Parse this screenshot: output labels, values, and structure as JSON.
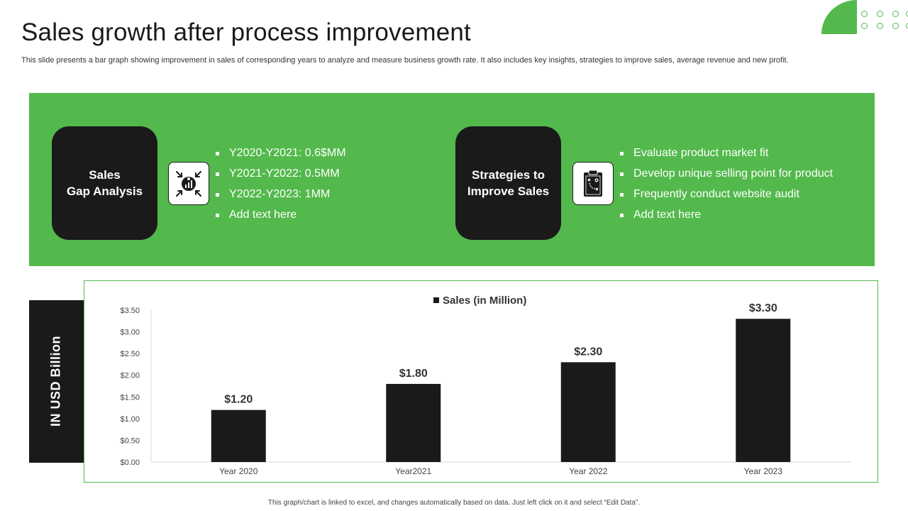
{
  "header": {
    "title": "Sales growth after process improvement",
    "subtitle": "This slide presents a bar graph showing improvement in sales of corresponding years to analyze and measure  business growth rate. It also includes key insights, strategies to improve sales, average revenue and new profit."
  },
  "colors": {
    "accent": "#53b94c",
    "dark": "#1a1a1a",
    "white": "#ffffff"
  },
  "sections": [
    {
      "heading_line1": "Sales",
      "heading_line2": "Gap Analysis",
      "icon": "target-money-icon",
      "bullets": [
        "Y2020-Y2021:  0.6$MM",
        "Y2021-Y2022:  0.5MM",
        "Y2022-Y2023:  1MM",
        "Add text here"
      ]
    },
    {
      "heading_line1": "Strategies to",
      "heading_line2": "Improve Sales",
      "icon": "clipboard-strategy-icon",
      "bullets": [
        "Evaluate product market fit",
        "Develop unique selling point for product",
        "Frequently  conduct website audit",
        "Add text here"
      ]
    }
  ],
  "y_band_label": "IN USD Billion",
  "chart_data": {
    "type": "bar",
    "title": "",
    "legend": "Sales (in Million)",
    "legend_position": "top-center",
    "categories": [
      "Year 2020",
      "Year2021",
      "Year 2022",
      "Year 2023"
    ],
    "series": [
      {
        "name": "Sales (in Million)",
        "values": [
          1.2,
          1.8,
          2.3,
          3.3
        ],
        "data_labels": [
          "$1.20",
          "$1.80",
          "$2.30",
          "$3.30"
        ],
        "color": "#1a1a1a"
      }
    ],
    "ylim": [
      0,
      3.5
    ],
    "yticks": [
      0,
      0.5,
      1.0,
      1.5,
      2.0,
      2.5,
      3.0,
      3.5
    ],
    "ytick_labels": [
      "$0.00",
      "$0.50",
      "$1.00",
      "$1.50",
      "$2.00",
      "$2.50",
      "$3.00",
      "$3.50"
    ],
    "xlabel": "",
    "ylabel": "",
    "grid": false
  },
  "footnote": "This graph/chart is linked to excel, and changes automatically based on data. Just left click on it and select “Edit Data”."
}
